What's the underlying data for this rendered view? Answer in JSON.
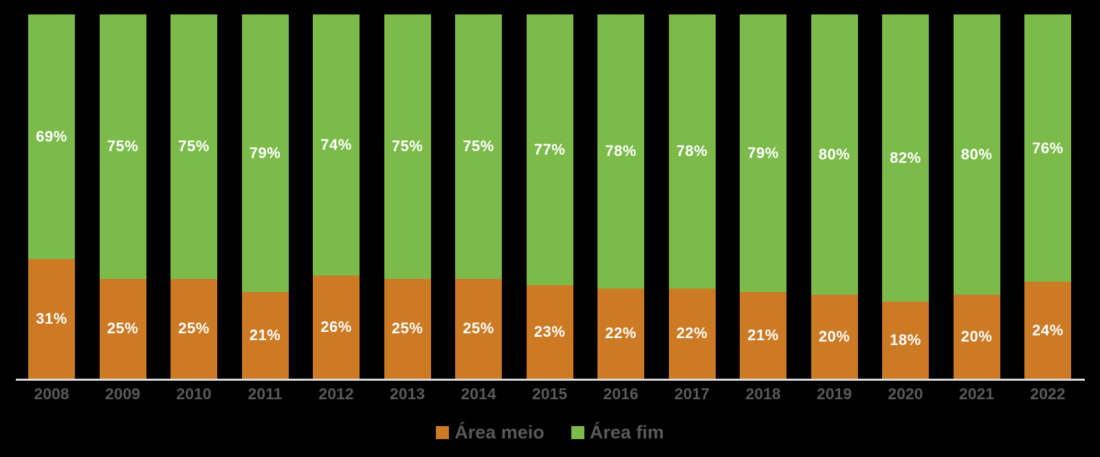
{
  "colors": {
    "background": "#000000",
    "bar_label": "#FFFFFF",
    "axis_line": "#DCDCDC",
    "tick_label": "#595959",
    "legend_label": "#595959"
  },
  "legend": {
    "items": [
      {
        "label": "Área meio",
        "color": "#CC7A24"
      },
      {
        "label": "Área fim",
        "color": "#7CBB4A"
      }
    ]
  },
  "chart_data": {
    "type": "bar",
    "variant": "stacked-100-percent",
    "orientation": "vertical",
    "title": "",
    "xlabel": "",
    "ylabel": "",
    "ylim": [
      0,
      100
    ],
    "grid": false,
    "legend_position": "bottom",
    "value_suffix": "%",
    "categories": [
      "2008",
      "2009",
      "2010",
      "2011",
      "2012",
      "2013",
      "2014",
      "2015",
      "2016",
      "2017",
      "2018",
      "2019",
      "2020",
      "2021",
      "2022"
    ],
    "series": [
      {
        "name": "Área meio",
        "color": "#CC7A24",
        "stack_order": "bottom",
        "values": [
          31,
          25,
          25,
          21,
          26,
          25,
          25,
          23,
          22,
          22,
          21,
          20,
          18,
          20,
          24
        ]
      },
      {
        "name": "Área fim",
        "color": "#7CBB4A",
        "stack_order": "top",
        "values": [
          69,
          75,
          75,
          79,
          74,
          75,
          75,
          77,
          78,
          78,
          79,
          80,
          82,
          80,
          76
        ]
      }
    ]
  }
}
